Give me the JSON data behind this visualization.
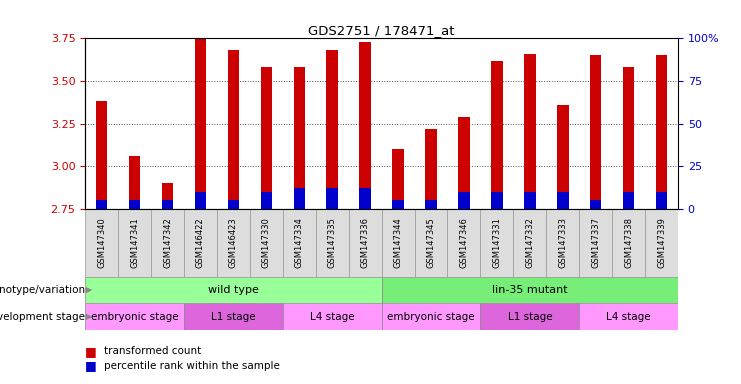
{
  "title": "GDS2751 / 178471_at",
  "samples": [
    "GSM147340",
    "GSM147341",
    "GSM147342",
    "GSM146422",
    "GSM146423",
    "GSM147330",
    "GSM147334",
    "GSM147335",
    "GSM147336",
    "GSM147344",
    "GSM147345",
    "GSM147346",
    "GSM147331",
    "GSM147332",
    "GSM147333",
    "GSM147337",
    "GSM147338",
    "GSM147339"
  ],
  "transformed_count": [
    3.38,
    3.06,
    2.9,
    3.75,
    3.68,
    3.58,
    3.58,
    3.68,
    3.73,
    3.1,
    3.22,
    3.29,
    3.62,
    3.66,
    3.36,
    3.65,
    3.58,
    3.65
  ],
  "percentile_rank_pct": [
    5,
    5,
    5,
    10,
    5,
    10,
    12,
    12,
    12,
    5,
    5,
    10,
    10,
    10,
    10,
    5,
    10,
    10
  ],
  "bar_bottom": 2.75,
  "ylim": [
    2.75,
    3.75
  ],
  "yticks": [
    2.75,
    3.0,
    3.25,
    3.5,
    3.75
  ],
  "y2ticks": [
    0,
    25,
    50,
    75,
    100
  ],
  "bar_color_red": "#cc0000",
  "bar_color_blue": "#0000cc",
  "grid_color": "#000000",
  "genotype_groups": [
    {
      "label": "wild type",
      "start": 0,
      "end": 9,
      "color": "#99ff99"
    },
    {
      "label": "lin-35 mutant",
      "start": 9,
      "end": 18,
      "color": "#77ee77"
    }
  ],
  "dev_groups": [
    {
      "label": "embryonic stage",
      "start": 0,
      "end": 3,
      "color": "#ff99ff"
    },
    {
      "label": "L1 stage",
      "start": 3,
      "end": 6,
      "color": "#dd66dd"
    },
    {
      "label": "L4 stage",
      "start": 6,
      "end": 9,
      "color": "#ff99ff"
    },
    {
      "label": "embryonic stage",
      "start": 9,
      "end": 12,
      "color": "#ff99ff"
    },
    {
      "label": "L1 stage",
      "start": 12,
      "end": 15,
      "color": "#dd66dd"
    },
    {
      "label": "L4 stage",
      "start": 15,
      "end": 18,
      "color": "#ff99ff"
    }
  ],
  "genotype_label": "genotype/variation",
  "dev_label": "development stage",
  "legend_red": "transformed count",
  "legend_blue": "percentile rank within the sample",
  "bg_color": "#ffffff",
  "plot_bg": "#ffffff",
  "tick_label_color_left": "#cc0000",
  "tick_label_color_right": "#0000cc",
  "xlabel_bg": "#dddddd",
  "bar_width": 0.35
}
